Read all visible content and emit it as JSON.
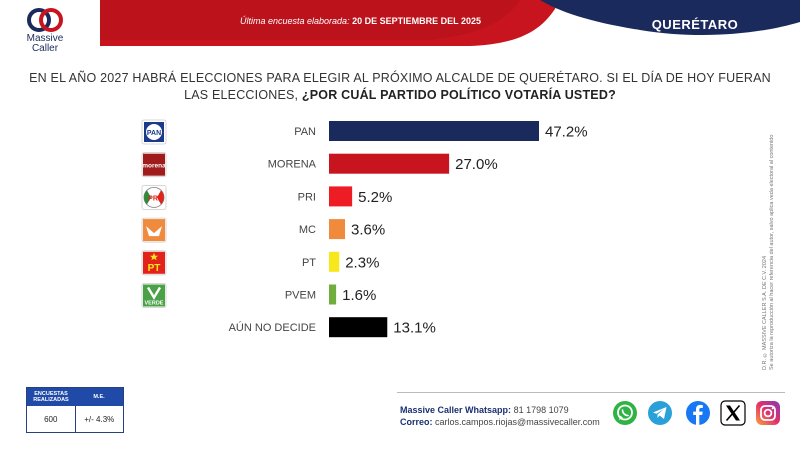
{
  "header": {
    "logo_top": "Massive",
    "logo_bottom": "Caller",
    "survey_prefix": "Última encuesta elaborada: ",
    "survey_date": "20 DE SEPTIEMBRE DEL 2025",
    "region": "QUERÉTARO",
    "colors": {
      "red": "#c8141e",
      "navy": "#1b2a5c"
    }
  },
  "question": {
    "text": "EN EL AÑO 2027 HABRÁ ELECCIONES PARA ELEGIR AL PRÓXIMO ALCALDE DE QUERÉTARO. SI EL DÍA DE HOY FUERAN LAS ELECCIONES,",
    "emphasis": "¿POR CUÁL PARTIDO POLÍTICO VOTARÍA USTED?"
  },
  "chart_data": {
    "type": "bar",
    "orientation": "horizontal",
    "categories": [
      "PAN",
      "MORENA",
      "PRI",
      "MC",
      "PT",
      "PVEM",
      "AÚN NO DECIDE"
    ],
    "values": [
      47.2,
      27.0,
      5.2,
      3.6,
      2.3,
      1.6,
      13.1
    ],
    "value_labels": [
      "47.2%",
      "27.0%",
      "5.2%",
      "3.6%",
      "2.3%",
      "1.6%",
      "13.1%"
    ],
    "colors": [
      "#1b2a5c",
      "#c8141e",
      "#ee1c24",
      "#f08a3c",
      "#f6e81b",
      "#6fae3d",
      "#000000"
    ],
    "unit": "%",
    "xlim": [
      0,
      47.2
    ],
    "party_logos": [
      {
        "icon": "pan-logo",
        "text": "PAN",
        "color": "#1b3a8c"
      },
      {
        "icon": "morena-logo",
        "text": "morena",
        "color": "#a01c1c"
      },
      {
        "icon": "pri-logo",
        "text": "PRI",
        "color": "#e2231a"
      },
      {
        "icon": "mc-logo",
        "text": "",
        "color": "#f08a3c"
      },
      {
        "icon": "pt-logo",
        "text": "PT",
        "color": "#e2231a"
      },
      {
        "icon": "pvem-logo",
        "text": "VERDE",
        "color": "#4aa146"
      }
    ],
    "grid": false,
    "legend": "none"
  },
  "disclaimer": {
    "line1": "D.R. © MASSIVE CALLER S.A. DE C.V. 2024",
    "line2": "Se autoriza la reproducción al hacer referencia del autor, salvo aplica veda electoral al contenido"
  },
  "stats": {
    "h1": "ENCUESTAS REALIZADAS",
    "h2": "M.E.",
    "v1": "600",
    "v2": "+/- 4.3%"
  },
  "contact": {
    "whatsapp_label": "Massive Caller Whatsapp:",
    "whatsapp_value": "81 1798 1079",
    "email_label": "Correo:",
    "email_value": "carlos.campos.riojas@massivecaller.com"
  },
  "social": [
    {
      "icon": "whatsapp-icon",
      "color": "#2fb344"
    },
    {
      "icon": "telegram-icon",
      "color": "#2aa0d8"
    },
    {
      "icon": "facebook-icon",
      "color": "#1877f2"
    },
    {
      "icon": "x-icon",
      "color": "#000000"
    },
    {
      "icon": "instagram-icon",
      "color": "#d6287e"
    }
  ]
}
